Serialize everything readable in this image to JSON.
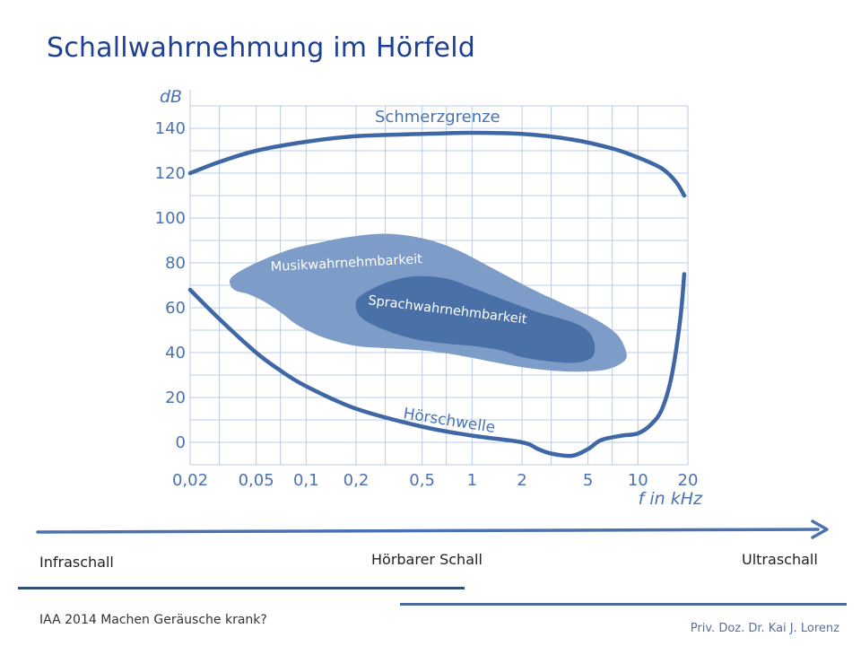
{
  "slide": {
    "title": "Schallwahrnehmung im Hörfeld",
    "footer_left": "IAA 2014 Machen Geräusche krank?",
    "footer_right": "Priv. Doz. Dr. Kai J. Lorenz"
  },
  "ranges": {
    "infra": "Infraschall",
    "audible": "Hörbarer Schall",
    "ultra": "Ultraschall"
  },
  "colors": {
    "curve": "#3f67a6",
    "grid": "#b8cbe6",
    "music_region": "#7d9cc8",
    "speech_region": "#4a70a8",
    "label": "#4a72b0",
    "title": "#1f3f93"
  },
  "chart_data": {
    "type": "line",
    "title": "",
    "xlabel": "f in kHz",
    "ylabel": "dB",
    "x_scale": "log",
    "xlim": [
      0.02,
      20
    ],
    "ylim": [
      -10,
      150
    ],
    "grid": true,
    "legend": "none",
    "x_ticks": [
      {
        "value": 0.02,
        "label": "0,02"
      },
      {
        "value": 0.05,
        "label": "0,05"
      },
      {
        "value": 0.1,
        "label": "0,1"
      },
      {
        "value": 0.2,
        "label": "0,2"
      },
      {
        "value": 0.5,
        "label": "0,5"
      },
      {
        "value": 1,
        "label": "1"
      },
      {
        "value": 2,
        "label": "2"
      },
      {
        "value": 5,
        "label": "5"
      },
      {
        "value": 10,
        "label": "10"
      },
      {
        "value": 20,
        "label": "20"
      }
    ],
    "x_gridlines": [
      0.02,
      0.03,
      0.05,
      0.07,
      0.1,
      0.2,
      0.3,
      0.5,
      0.7,
      1,
      2,
      3,
      5,
      7,
      10,
      20
    ],
    "y_ticks": [
      {
        "value": 0,
        "label": "0"
      },
      {
        "value": 20,
        "label": "20"
      },
      {
        "value": 40,
        "label": "40"
      },
      {
        "value": 60,
        "label": "60"
      },
      {
        "value": 80,
        "label": "80"
      },
      {
        "value": 100,
        "label": "100"
      },
      {
        "value": 120,
        "label": "120"
      },
      {
        "value": 140,
        "label": "140"
      }
    ],
    "y_gridlines": [
      -10,
      0,
      10,
      20,
      30,
      40,
      50,
      60,
      70,
      80,
      90,
      100,
      110,
      120,
      130,
      140,
      150
    ],
    "series": [
      {
        "name": "Schmerzgrenze",
        "x": [
          0.02,
          0.03,
          0.05,
          0.1,
          0.2,
          0.5,
          1,
          2,
          4,
          7,
          10,
          14,
          17,
          19
        ],
        "y": [
          120,
          125,
          130,
          134,
          136.5,
          137.5,
          138,
          137.5,
          135,
          131,
          127,
          122,
          116,
          110
        ]
      },
      {
        "name": "Hörschwelle",
        "x": [
          0.02,
          0.03,
          0.05,
          0.07,
          0.1,
          0.2,
          0.5,
          1,
          2,
          2.5,
          3,
          4,
          5,
          6,
          8,
          10,
          12,
          14,
          16,
          18,
          19
        ],
        "y": [
          68,
          55,
          40,
          32,
          25,
          15,
          7,
          3,
          0,
          -3,
          -5,
          -6,
          -3,
          1,
          3,
          4,
          8,
          15,
          30,
          55,
          75
        ]
      }
    ],
    "regions": [
      {
        "name": "Musikwahrnehmbarkeit",
        "x": [
          0.036,
          0.05,
          0.08,
          0.12,
          0.18,
          0.3,
          0.5,
          0.8,
          1.3,
          2.2,
          3.5,
          5.5,
          7.5,
          8.5,
          8.2,
          6.5,
          4.5,
          3,
          2,
          1.3,
          0.8,
          0.5,
          0.3,
          0.2,
          0.13,
          0.09,
          0.07,
          0.055,
          0.045,
          0.038,
          0.035
        ],
        "y": [
          74,
          80,
          86,
          89,
          91.5,
          93,
          91,
          86,
          78,
          69,
          62,
          55,
          48,
          40,
          36,
          32.5,
          31.5,
          32,
          33.5,
          36,
          39,
          41,
          42,
          43,
          46.5,
          52,
          58,
          63,
          66,
          67.5,
          70
        ]
      },
      {
        "name": "Sprachwahrnehmbarkeit",
        "x": [
          0.21,
          0.3,
          0.45,
          0.7,
          1,
          1.5,
          2.5,
          3.5,
          4.5,
          5.2,
          5.5,
          5.2,
          4.2,
          3,
          2,
          1.5,
          1,
          0.7,
          0.45,
          0.3,
          0.22,
          0.2
        ],
        "y": [
          65,
          71,
          74,
          73,
          69,
          64,
          58,
          55,
          52,
          48,
          42,
          37.5,
          35.5,
          36,
          38,
          41,
          43,
          44,
          46,
          50,
          55,
          60
        ]
      }
    ]
  }
}
